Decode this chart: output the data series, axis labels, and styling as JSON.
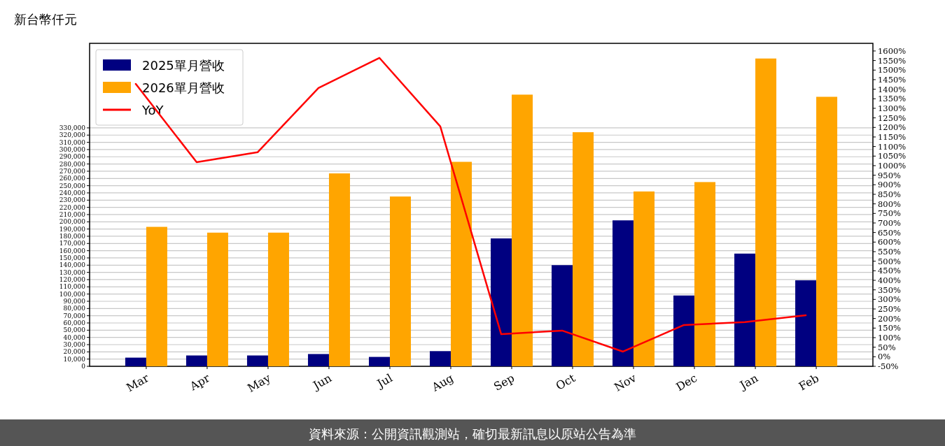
{
  "chart_data": {
    "type": "bar",
    "ylabel": "新台幣仟元",
    "categories": [
      "Mar",
      "Apr",
      "May",
      "Jun",
      "Jul",
      "Aug",
      "Sep",
      "Oct",
      "Nov",
      "Dec",
      "Jan",
      "Feb"
    ],
    "series": [
      {
        "name": "2025單月營收",
        "color": "#000080",
        "values": [
          12000,
          15000,
          15000,
          17000,
          13000,
          21000,
          177000,
          140000,
          202000,
          98000,
          156000,
          119000
        ]
      },
      {
        "name": "2026單月營收",
        "color": "#ffa500",
        "values": [
          193000,
          185000,
          185000,
          267000,
          235000,
          283000,
          376000,
          324000,
          242000,
          255000,
          426000,
          373000
        ]
      },
      {
        "name": "YoY",
        "type": "line",
        "axis": "y2",
        "color": "#ff0000",
        "values": [
          1428,
          1018,
          1070,
          1406,
          1564,
          1205,
          118,
          137,
          27,
          166,
          181,
          217
        ]
      }
    ],
    "ylim": [
      0,
      447000
    ],
    "yticks": [
      0,
      {
        "value": 10000,
        "label": "10,000"
      },
      {
        "value": 20000,
        "label": "20,000"
      },
      {
        "value": 30000,
        "label": "30,000"
      },
      {
        "value": 40000,
        "label": "40,000"
      },
      {
        "value": 50000,
        "label": "50,000"
      },
      {
        "value": 60000,
        "label": "60,000"
      },
      {
        "value": 70000,
        "label": "70,000"
      },
      {
        "value": 80000,
        "label": "80,000"
      },
      {
        "value": 90000,
        "label": "90,000"
      },
      {
        "value": 100000,
        "label": "100,000"
      },
      {
        "value": 110000,
        "label": "110,000"
      },
      {
        "value": 120000,
        "label": "120,000"
      },
      {
        "value": 130000,
        "label": "130,000"
      },
      {
        "value": 140000,
        "label": "140,000"
      },
      {
        "value": 150000,
        "label": "150,000"
      },
      {
        "value": 160000,
        "label": "160,000"
      },
      {
        "value": 170000,
        "label": "170,000"
      },
      {
        "value": 180000,
        "label": "180,000"
      },
      {
        "value": 190000,
        "label": "190,000"
      },
      {
        "value": 200000,
        "label": "200,000"
      },
      {
        "value": 210000,
        "label": "210,000"
      },
      {
        "value": 220000,
        "label": "220,000"
      },
      {
        "value": 230000,
        "label": "230,000"
      },
      {
        "value": 240000,
        "label": "240,000"
      },
      {
        "value": 250000,
        "label": "250,000"
      },
      {
        "value": 260000,
        "label": "260,000"
      },
      {
        "value": 270000,
        "label": "270,000"
      },
      {
        "value": 280000,
        "label": "280,000"
      },
      {
        "value": 290000,
        "label": "290,000"
      },
      {
        "value": 300000,
        "label": "300,000"
      },
      {
        "value": 310000,
        "label": "310,000"
      },
      {
        "value": 320000,
        "label": "320,000"
      },
      {
        "value": 330000,
        "label": "330,000"
      }
    ],
    "y2lim": [
      -50,
      1640
    ],
    "y2ticks": [
      {
        "value": -50,
        "label": "-50%"
      },
      {
        "value": 0,
        "label": "0%"
      },
      {
        "value": 50,
        "label": "50%"
      },
      {
        "value": 100,
        "label": "100%"
      },
      {
        "value": 150,
        "label": "150%"
      },
      {
        "value": 200,
        "label": "200%"
      },
      {
        "value": 250,
        "label": "250%"
      },
      {
        "value": 300,
        "label": "300%"
      },
      {
        "value": 350,
        "label": "350%"
      },
      {
        "value": 400,
        "label": "400%"
      },
      {
        "value": 450,
        "label": "450%"
      },
      {
        "value": 500,
        "label": "500%"
      },
      {
        "value": 550,
        "label": "550%"
      },
      {
        "value": 600,
        "label": "600%"
      },
      {
        "value": 650,
        "label": "650%"
      },
      {
        "value": 700,
        "label": "700%"
      },
      {
        "value": 750,
        "label": "750%"
      },
      {
        "value": 800,
        "label": "800%"
      },
      {
        "value": 850,
        "label": "850%"
      },
      {
        "value": 900,
        "label": "900%"
      },
      {
        "value": 950,
        "label": "950%"
      },
      {
        "value": 1000,
        "label": "1000%"
      },
      {
        "value": 1050,
        "label": "1050%"
      },
      {
        "value": 1100,
        "label": "1100%"
      },
      {
        "value": 1150,
        "label": "1150%"
      },
      {
        "value": 1200,
        "label": "1200%"
      },
      {
        "value": 1250,
        "label": "1250%"
      },
      {
        "value": 1300,
        "label": "1300%"
      },
      {
        "value": 1350,
        "label": "1350%"
      },
      {
        "value": 1400,
        "label": "1400%"
      },
      {
        "value": 1450,
        "label": "1450%"
      },
      {
        "value": 1500,
        "label": "1500%"
      },
      {
        "value": 1550,
        "label": "1550%"
      },
      {
        "value": 1600,
        "label": "1600%"
      }
    ],
    "grid": "y",
    "legend": "top left",
    "annotations": [
      "資料來源：公開資訊觀測站，確切最新訊息以原站公告為準"
    ]
  }
}
